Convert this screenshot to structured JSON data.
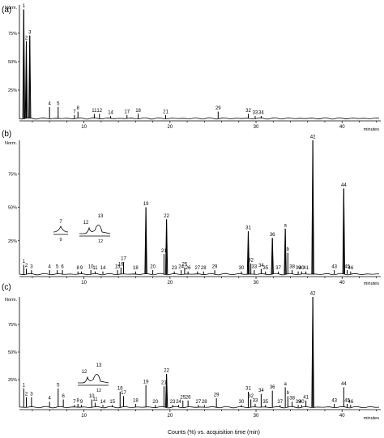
{
  "xlabel": "Counts (%) vs. acquisition time (min)",
  "chart_data": [
    {
      "type": "line",
      "panel_label": "(a)",
      "x_unit": "minutes",
      "y_max_label": "Norm.",
      "xlim": [
        2.5,
        44.5
      ],
      "ylim": [
        0,
        100
      ],
      "xticks": [
        10,
        20,
        30,
        40
      ],
      "yticks": [
        25,
        50,
        75
      ],
      "tick_labels": [
        "10",
        "20",
        "30",
        "40",
        "25%",
        "50%",
        "75%"
      ],
      "peaks": [
        {
          "label": "1",
          "x": 3.0,
          "y": 96
        },
        {
          "label": "2",
          "x": 3.3,
          "y": 68
        },
        {
          "label": "3",
          "x": 3.7,
          "y": 73
        },
        {
          "label": "4",
          "x": 6.0,
          "y": 10
        },
        {
          "label": "5",
          "x": 7.0,
          "y": 10
        },
        {
          "label": "7",
          "x": 8.9,
          "y": 3
        },
        {
          "label": "8",
          "x": 9.3,
          "y": 6
        },
        {
          "label": "11",
          "x": 11.2,
          "y": 4
        },
        {
          "label": "12",
          "x": 11.8,
          "y": 4
        },
        {
          "label": "14",
          "x": 13.1,
          "y": 2
        },
        {
          "label": "17",
          "x": 15.0,
          "y": 3
        },
        {
          "label": "18",
          "x": 16.3,
          "y": 4
        },
        {
          "label": "21",
          "x": 19.5,
          "y": 3
        },
        {
          "label": "29",
          "x": 25.6,
          "y": 6
        },
        {
          "label": "32",
          "x": 29.1,
          "y": 4
        },
        {
          "label": "33",
          "x": 29.9,
          "y": 2
        },
        {
          "label": "34",
          "x": 30.6,
          "y": 2
        }
      ]
    },
    {
      "type": "line",
      "panel_label": "(b)",
      "x_unit": "minutes",
      "y_max_label": "Norm.",
      "xlim": [
        2.5,
        44.5
      ],
      "ylim": [
        0,
        100
      ],
      "xticks": [
        10,
        20,
        30,
        40
      ],
      "yticks": [
        25,
        50,
        75
      ],
      "tick_labels": [
        "10",
        "20",
        "30",
        "40",
        "25%",
        "50%",
        "75%"
      ],
      "peaks": [
        {
          "label": "1",
          "x": 3.0,
          "y": 7
        },
        {
          "label": "2",
          "x": 3.3,
          "y": 4
        },
        {
          "label": "3",
          "x": 3.9,
          "y": 3
        },
        {
          "label": "4",
          "x": 6.0,
          "y": 3
        },
        {
          "label": "5",
          "x": 6.9,
          "y": 3
        },
        {
          "label": "6",
          "x": 7.5,
          "y": 3
        },
        {
          "label": "8",
          "x": 9.3,
          "y": 2
        },
        {
          "label": "9",
          "x": 9.7,
          "y": 2
        },
        {
          "label": "10",
          "x": 10.8,
          "y": 3
        },
        {
          "label": "11",
          "x": 11.3,
          "y": 2
        },
        {
          "label": "14",
          "x": 12.2,
          "y": 2
        },
        {
          "label": "15",
          "x": 13.9,
          "y": 3
        },
        {
          "label": "16",
          "x": 14.3,
          "y": 5
        },
        {
          "label": "17",
          "x": 14.6,
          "y": 9
        },
        {
          "label": "18",
          "x": 16.0,
          "y": 2
        },
        {
          "label": "19",
          "x": 17.2,
          "y": 50
        },
        {
          "label": "20",
          "x": 18.0,
          "y": 3
        },
        {
          "label": "21",
          "x": 19.3,
          "y": 15
        },
        {
          "label": "22",
          "x": 19.6,
          "y": 41
        },
        {
          "label": "23",
          "x": 20.5,
          "y": 2
        },
        {
          "label": "24",
          "x": 21.3,
          "y": 3
        },
        {
          "label": "25",
          "x": 21.7,
          "y": 5
        },
        {
          "label": "26",
          "x": 22.1,
          "y": 2
        },
        {
          "label": "27",
          "x": 23.2,
          "y": 2
        },
        {
          "label": "28",
          "x": 23.9,
          "y": 2
        },
        {
          "label": "29",
          "x": 25.2,
          "y": 3
        },
        {
          "label": "30",
          "x": 28.3,
          "y": 2
        },
        {
          "label": "31",
          "x": 29.1,
          "y": 32
        },
        {
          "label": "32",
          "x": 29.4,
          "y": 8
        },
        {
          "label": "33",
          "x": 29.8,
          "y": 3
        },
        {
          "label": "34",
          "x": 30.6,
          "y": 4
        },
        {
          "label": "35",
          "x": 31.1,
          "y": 2
        },
        {
          "label": "36",
          "x": 31.9,
          "y": 27
        },
        {
          "label": "37",
          "x": 32.6,
          "y": 2
        },
        {
          "label": "a",
          "x": 33.4,
          "y": 34
        },
        {
          "label": "b",
          "x": 33.7,
          "y": 16
        },
        {
          "label": "38",
          "x": 34.2,
          "y": 3
        },
        {
          "label": "39",
          "x": 34.9,
          "y": 2
        },
        {
          "label": "40",
          "x": 35.3,
          "y": 2
        },
        {
          "label": "41",
          "x": 35.8,
          "y": 2
        },
        {
          "label": "42",
          "x": 36.6,
          "y": 100
        },
        {
          "label": "43",
          "x": 39.1,
          "y": 3
        },
        {
          "label": "44",
          "x": 40.2,
          "y": 64
        },
        {
          "label": "45",
          "x": 40.6,
          "y": 3
        },
        {
          "label": "46",
          "x": 41.0,
          "y": 2
        }
      ],
      "insets": [
        {
          "labels": [
            "7",
            "9"
          ],
          "note": "zoomed region, peaks 7 and 9"
        },
        {
          "labels": [
            "12",
            "13",
            "12"
          ],
          "note": "zoomed region, peaks 12 and 13"
        }
      ]
    },
    {
      "type": "line",
      "panel_label": "(c)",
      "x_unit": "minutes",
      "y_max_label": "Norm.",
      "xlim": [
        2.5,
        44.5
      ],
      "ylim": [
        0,
        100
      ],
      "xticks": [
        10,
        20,
        30,
        40
      ],
      "yticks": [
        25,
        50,
        75
      ],
      "tick_labels": [
        "10",
        "20",
        "30",
        "40",
        "25%",
        "50%",
        "75%"
      ],
      "peaks": [
        {
          "label": "1",
          "x": 3.0,
          "y": 17
        },
        {
          "label": "2",
          "x": 3.3,
          "y": 9
        },
        {
          "label": "3",
          "x": 3.9,
          "y": 9
        },
        {
          "label": "4",
          "x": 6.0,
          "y": 5
        },
        {
          "label": "5",
          "x": 7.0,
          "y": 17
        },
        {
          "label": "6",
          "x": 7.6,
          "y": 7
        },
        {
          "label": "7",
          "x": 8.9,
          "y": 2
        },
        {
          "label": "8",
          "x": 9.3,
          "y": 3
        },
        {
          "label": "9",
          "x": 9.7,
          "y": 2
        },
        {
          "label": "10",
          "x": 10.9,
          "y": 7
        },
        {
          "label": "11",
          "x": 11.3,
          "y": 4
        },
        {
          "label": "14",
          "x": 12.2,
          "y": 2
        },
        {
          "label": "15",
          "x": 13.3,
          "y": 2
        },
        {
          "label": "16",
          "x": 14.2,
          "y": 14
        },
        {
          "label": "17",
          "x": 14.6,
          "y": 10
        },
        {
          "label": "18",
          "x": 16.0,
          "y": 3
        },
        {
          "label": "19",
          "x": 17.2,
          "y": 20
        },
        {
          "label": "20",
          "x": 18.3,
          "y": 2
        },
        {
          "label": "21",
          "x": 19.3,
          "y": 19
        },
        {
          "label": "22",
          "x": 19.6,
          "y": 30
        },
        {
          "label": "23",
          "x": 20.3,
          "y": 2
        },
        {
          "label": "24",
          "x": 21.0,
          "y": 2
        },
        {
          "label": "25",
          "x": 21.5,
          "y": 6
        },
        {
          "label": "26",
          "x": 22.1,
          "y": 6
        },
        {
          "label": "27",
          "x": 23.3,
          "y": 2
        },
        {
          "label": "28",
          "x": 24.0,
          "y": 2
        },
        {
          "label": "29",
          "x": 25.4,
          "y": 8
        },
        {
          "label": "30",
          "x": 28.3,
          "y": 2
        },
        {
          "label": "31",
          "x": 29.1,
          "y": 14
        },
        {
          "label": "32",
          "x": 29.4,
          "y": 7
        },
        {
          "label": "33",
          "x": 29.9,
          "y": 3
        },
        {
          "label": "34",
          "x": 30.6,
          "y": 12
        },
        {
          "label": "35",
          "x": 31.1,
          "y": 2
        },
        {
          "label": "36",
          "x": 31.9,
          "y": 15
        },
        {
          "label": "37",
          "x": 32.8,
          "y": 2
        },
        {
          "label": "a",
          "x": 33.4,
          "y": 18
        },
        {
          "label": "b",
          "x": 33.7,
          "y": 10
        },
        {
          "label": "38",
          "x": 34.2,
          "y": 5
        },
        {
          "label": "39",
          "x": 34.9,
          "y": 2
        },
        {
          "label": "40",
          "x": 35.3,
          "y": 2
        },
        {
          "label": "41",
          "x": 35.8,
          "y": 6
        },
        {
          "label": "42",
          "x": 36.6,
          "y": 100
        },
        {
          "label": "43",
          "x": 39.1,
          "y": 3
        },
        {
          "label": "44",
          "x": 40.2,
          "y": 18
        },
        {
          "label": "45",
          "x": 40.6,
          "y": 3
        },
        {
          "label": "46",
          "x": 41.0,
          "y": 2
        }
      ],
      "insets": [
        {
          "labels": [
            "12",
            "13",
            "12"
          ],
          "note": "zoomed region, peaks 12 and 13"
        }
      ]
    }
  ]
}
